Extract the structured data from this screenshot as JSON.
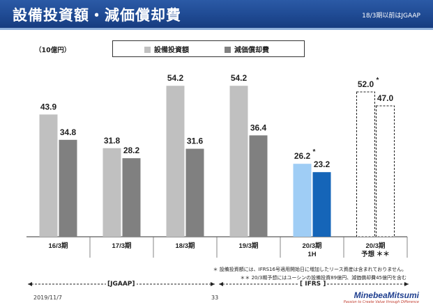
{
  "header": {
    "title": "設備投資額・減価償却費",
    "note": "18/3期以前はJGAAP"
  },
  "unit_label": "（10億円）",
  "legend": {
    "capex_label": "設備投資額",
    "depreciation_label": "減価償却費"
  },
  "colors": {
    "header": "#1f4a93",
    "capex_jgaap": "#c0c0c0",
    "dep_jgaap": "#808080",
    "capex_1h": "#9fcdf5",
    "dep_1h": "#1565b8",
    "axis": "#333333"
  },
  "chart_data": {
    "type": "bar",
    "categories": [
      "16/3期",
      "17/3期",
      "18/3期",
      "19/3期",
      "20/3期",
      "20/3期"
    ],
    "category_sublabels": [
      "",
      "",
      "",
      "",
      "1H",
      "予想 ＊＊"
    ],
    "series": [
      {
        "name": "設備投資額",
        "values": [
          43.9,
          31.8,
          54.2,
          54.2,
          26.2,
          52.0
        ]
      },
      {
        "name": "減価償却費",
        "values": [
          34.8,
          28.2,
          31.6,
          36.4,
          23.2,
          47.0
        ]
      }
    ],
    "value_labels": {
      "capex": [
        "43.9",
        "31.8",
        "54.2",
        "54.2",
        "26.2",
        "52.0"
      ],
      "depreciation": [
        "34.8",
        "28.2",
        "31.6",
        "36.4",
        "23.2",
        "47.0"
      ]
    },
    "value_label_marks": [
      "",
      "",
      "",
      "",
      "*",
      "*"
    ],
    "styles": [
      "jgaap",
      "jgaap",
      "jgaap",
      "ifrs",
      "half",
      "forecast"
    ],
    "ylim": [
      0,
      60
    ],
    "grid": false,
    "legend_position": "top-center"
  },
  "footnotes": {
    "note1": "＊ 設備投資額には、IFRS16号適用開始日に増加したリース資産は含まれておりません。",
    "note2": "＊＊ 20/3期予想にはユーシンの設備投資89億円、減価償却費45億円を含む"
  },
  "eras": {
    "jgaap": "[JGAAP]",
    "ifrs": "[ IFRS ]"
  },
  "footer": {
    "date": "2019/11/7",
    "page": "33",
    "brand": "MinebeaMitsumi",
    "tagline": "Passion to Create Value through Difference"
  }
}
